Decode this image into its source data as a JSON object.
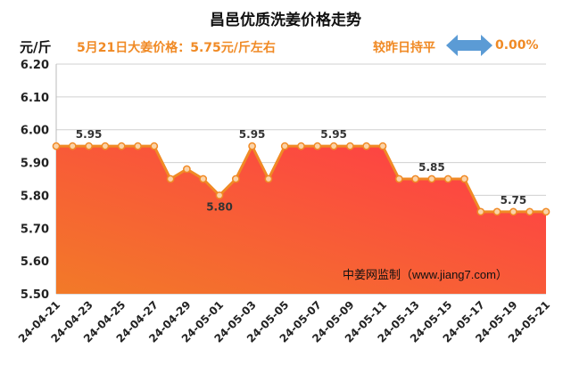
{
  "header": {
    "title": "昌邑优质洗姜价格走势",
    "unit": "元/斤",
    "price_text": "5月21日大姜价格：5.75元/斤左右",
    "compare_label": "较昨日持平",
    "change_pct": "0.00%"
  },
  "watermark": "中姜网监制（www.jiang7.com）",
  "colors": {
    "line": "#f08a25",
    "fill_top": "#ff3a48",
    "fill_bottom": "#f27a28",
    "arrow": "#5b9bd5",
    "accent_text": "#f08a25"
  },
  "chart_data": {
    "type": "area",
    "x": [
      "24-04-21",
      "24-04-22",
      "24-04-23",
      "24-04-24",
      "24-04-25",
      "24-04-26",
      "24-04-27",
      "24-04-28",
      "24-04-29",
      "24-04-30",
      "24-05-01",
      "24-05-02",
      "24-05-03",
      "24-05-04",
      "24-05-05",
      "24-05-06",
      "24-05-07",
      "24-05-08",
      "24-05-09",
      "24-05-10",
      "24-05-11",
      "24-05-12",
      "24-05-13",
      "24-05-14",
      "24-05-15",
      "24-05-16",
      "24-05-17",
      "24-05-18",
      "24-05-19",
      "24-05-20",
      "24-05-21"
    ],
    "x_tick_labels": [
      "24-04-21",
      "24-04-23",
      "24-04-25",
      "24-04-27",
      "24-04-29",
      "24-05-01",
      "24-05-03",
      "24-05-05",
      "24-05-07",
      "24-05-09",
      "24-05-11",
      "24-05-13",
      "24-05-15",
      "24-05-17",
      "24-05-19",
      "24-05-21"
    ],
    "values": [
      5.95,
      5.95,
      5.95,
      5.95,
      5.95,
      5.95,
      5.95,
      5.85,
      5.88,
      5.85,
      5.8,
      5.85,
      5.95,
      5.85,
      5.95,
      5.95,
      5.95,
      5.95,
      5.95,
      5.95,
      5.95,
      5.85,
      5.85,
      5.85,
      5.85,
      5.85,
      5.75,
      5.75,
      5.75,
      5.75,
      5.75
    ],
    "ylim": [
      5.5,
      6.2
    ],
    "y_ticks": [
      "5.50",
      "5.60",
      "5.70",
      "5.80",
      "5.90",
      "6.00",
      "6.10",
      "6.20"
    ],
    "data_labels": [
      {
        "index": 2,
        "text": "5.95"
      },
      {
        "index": 10,
        "text": "5.80"
      },
      {
        "index": 12,
        "text": "5.95"
      },
      {
        "index": 17,
        "text": "5.95"
      },
      {
        "index": 23,
        "text": "5.85"
      },
      {
        "index": 28,
        "text": "5.75"
      }
    ],
    "grid": "horizontal",
    "legend": "none"
  }
}
